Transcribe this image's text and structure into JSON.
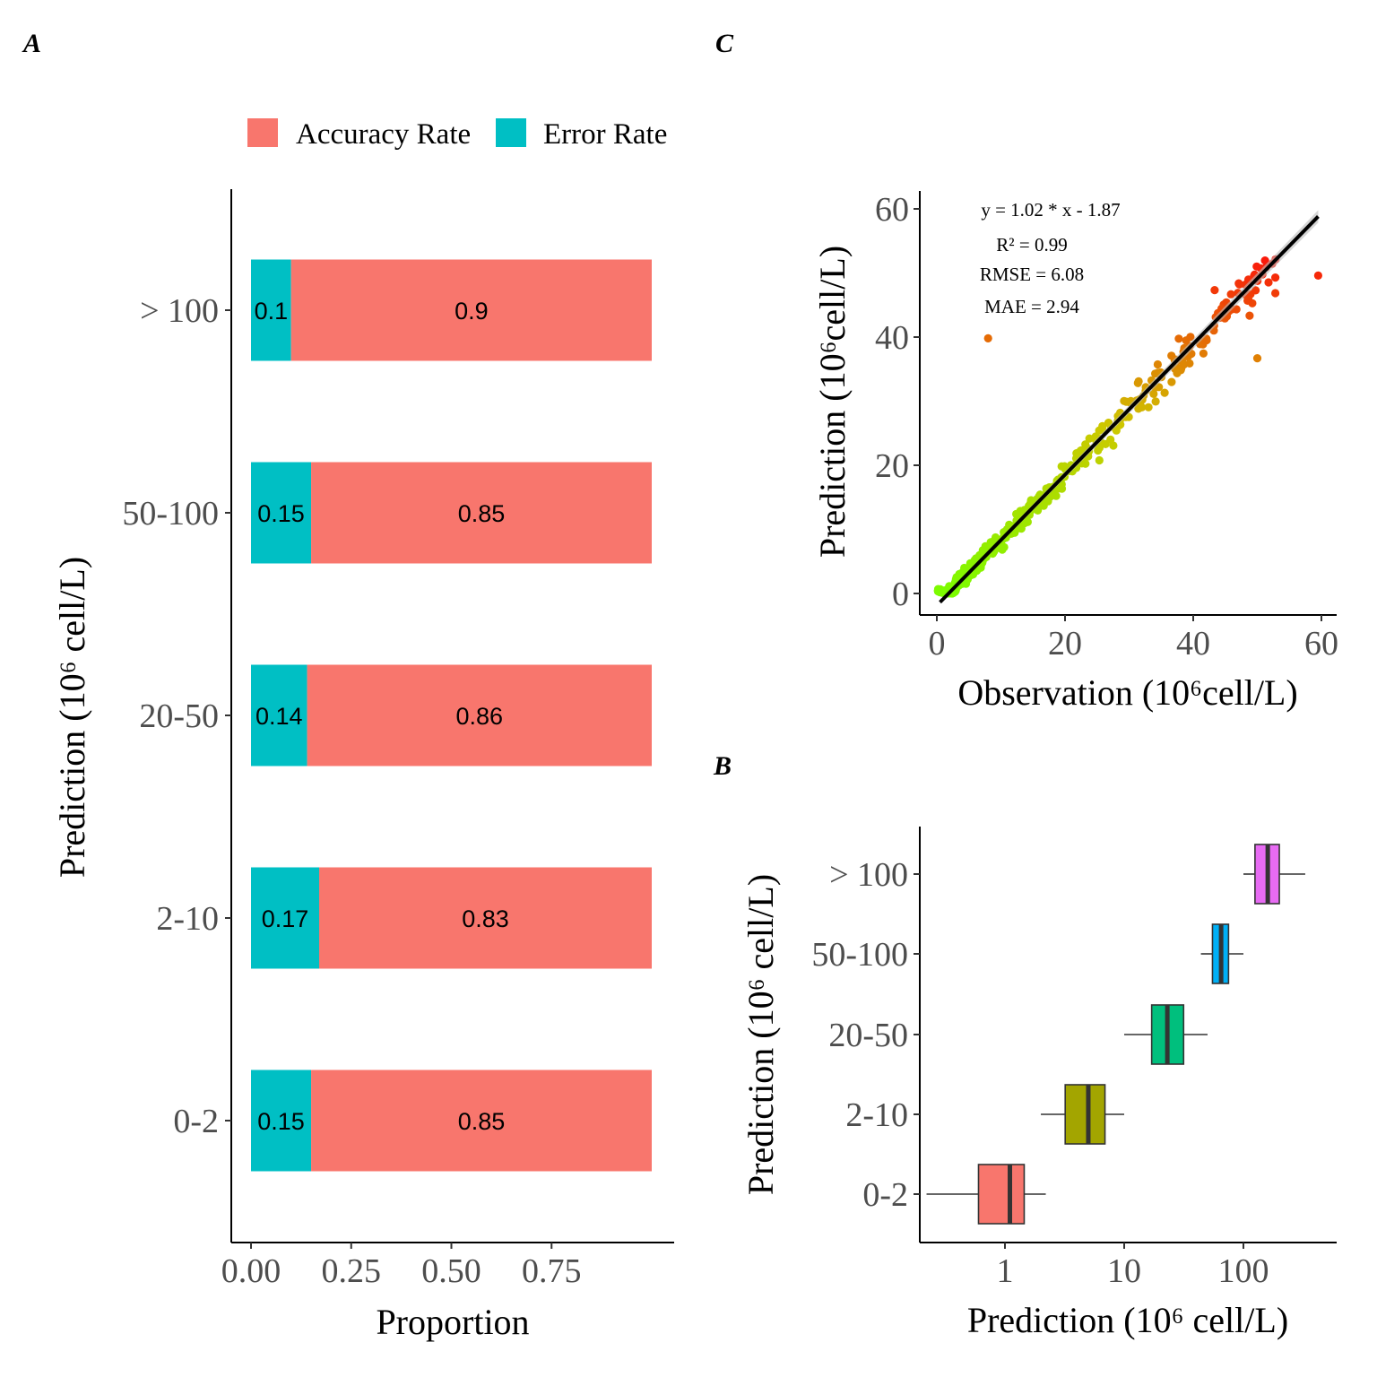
{
  "panels": {
    "a": "A",
    "b": "B",
    "c": "C"
  },
  "legend": {
    "accuracy": "Accuracy Rate",
    "error": "Error Rate"
  },
  "colors": {
    "accuracy": "#F8766D",
    "error": "#00BFC4",
    "box": [
      "#F8766D",
      "#A3A500",
      "#00BF7D",
      "#00B0F6",
      "#E76BF3"
    ]
  },
  "chart_data": [
    {
      "id": "A",
      "type": "bar",
      "orientation": "horizontal",
      "stacked": true,
      "categories": [
        "0-2",
        "2-10",
        "20-50",
        "50-100",
        "> 100"
      ],
      "series": [
        {
          "name": "Error Rate",
          "values": [
            0.15,
            0.17,
            0.14,
            0.15,
            0.1
          ],
          "labels": [
            "0.15",
            "0.17",
            "0.14",
            "0.15",
            "0.1"
          ]
        },
        {
          "name": "Accuracy Rate",
          "values": [
            0.85,
            0.83,
            0.86,
            0.85,
            0.9
          ],
          "labels": [
            "0.85",
            "0.83",
            "0.86",
            "0.85",
            "0.9"
          ]
        }
      ],
      "xlim": [
        0,
        1
      ],
      "xticks": [
        "0.00",
        "0.25",
        "0.50",
        "0.75"
      ],
      "xtick_values": [
        0,
        0.25,
        0.5,
        0.75
      ],
      "xlabel": "Proportion",
      "ylabel": "Prediction (10⁶ cell/L)",
      "legend_position": "top"
    },
    {
      "id": "C",
      "type": "scatter",
      "xlim": [
        -2.5,
        62
      ],
      "ylim": [
        -3,
        62
      ],
      "xticks": [
        "0",
        "20",
        "40",
        "60"
      ],
      "yticks": [
        "0",
        "20",
        "40",
        "60"
      ],
      "xtick_values": [
        0,
        20,
        40,
        60
      ],
      "ytick_values": [
        0,
        20,
        40,
        60
      ],
      "xlabel": "Observation (10⁶cell/L)",
      "ylabel": "Prediction (10⁶cell/L)",
      "fit": {
        "slope": 1.02,
        "intercept": -1.87,
        "x_range": [
          0.5,
          59.5
        ]
      },
      "annotations": [
        "y = 1.02 * x - 1.87",
        "R² = 0.99",
        "RMSE = 6.08",
        "MAE = 2.94"
      ],
      "outliers": [
        [
          8,
          39.8
        ],
        [
          50,
          36.7
        ],
        [
          59.5,
          49.6
        ],
        [
          49.9,
          51
        ]
      ],
      "n_points": 560
    },
    {
      "id": "B",
      "type": "boxplot",
      "orientation": "horizontal",
      "x_scale": "log",
      "categories": [
        "0-2",
        "2-10",
        "20-50",
        "50-100",
        "> 100"
      ],
      "boxes": [
        {
          "whisker_low": 0.22,
          "q1": 0.6,
          "median": 1.1,
          "q3": 1.45,
          "whisker_high": 2.2
        },
        {
          "whisker_low": 2,
          "q1": 3.2,
          "median": 5,
          "q3": 6.9,
          "whisker_high": 10
        },
        {
          "whisker_low": 10,
          "q1": 17,
          "median": 23,
          "q3": 31.5,
          "whisker_high": 50
        },
        {
          "whisker_low": 44,
          "q1": 55,
          "median": 65,
          "q3": 75,
          "whisker_high": 100
        },
        {
          "whisker_low": 100,
          "q1": 125,
          "median": 160,
          "q3": 200,
          "whisker_high": 330
        }
      ],
      "xticks": [
        "1",
        "10",
        "100"
      ],
      "xtick_values": [
        1,
        10,
        100
      ],
      "xlabel": "Prediction (10⁶ cell/L)",
      "ylabel": "Prediction (10⁶ cell/L)"
    }
  ]
}
